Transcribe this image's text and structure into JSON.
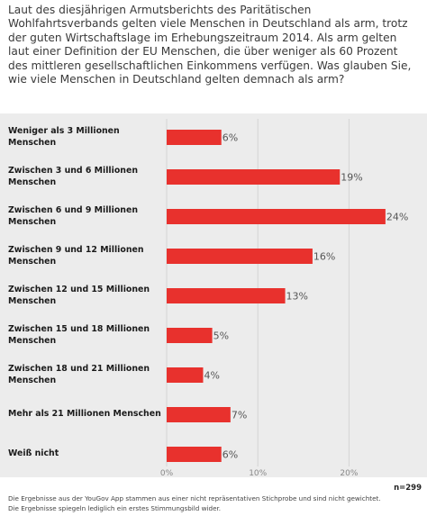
{
  "question": "Laut des diesjährigen Armutsberichts des Paritätischen Wohlfahrtsverbands gelten viele Menschen in Deutschland als arm, trotz der guten Wirtschaftslage im Erhebungszeitraum 2014. Als arm gelten laut einer Definition der EU Menschen, die über weniger als 60 Prozent des mittleren gesellschaftlichen Einkommens verfügen. Was glauben Sie, wie viele Menschen in Deutschland gelten demnach als arm?",
  "sample_size": "n=299",
  "footnotes": [
    "Die Ergebnisse aus der YouGov App stammen aus einer nicht repräsentativen Stichprobe und sind nicht gewichtet.",
    "Die Ergebnisse spiegeln lediglich ein erstes Stimmungsbild wider."
  ],
  "chart_data": {
    "type": "bar",
    "orientation": "horizontal",
    "categories": [
      "Weniger als 3 Millionen Menschen",
      "Zwischen 3 und 6 Millionen Menschen",
      "Zwischen 6 und 9 Millionen Menschen",
      "Zwischen 9 und 12 Millionen Menschen",
      "Zwischen 12 und 15 Millionen Menschen",
      "Zwischen 15 und 18 Millionen Menschen",
      "Zwischen 18 und 21 Millionen Menschen",
      "Mehr als 21 Millionen Menschen",
      "Weiß nicht"
    ],
    "values": [
      6,
      19,
      24,
      16,
      13,
      5,
      4,
      7,
      6
    ],
    "value_labels": [
      "6%",
      "19%",
      "24%",
      "16%",
      "13%",
      "5%",
      "4%",
      "7%",
      "6%"
    ],
    "xlim": [
      0,
      28
    ],
    "xticks": [
      0,
      10,
      20
    ],
    "xtick_labels": [
      "0%",
      "10%",
      "20%"
    ],
    "grid": true,
    "bar_color": "#e8312d",
    "background_color": "#ececec"
  }
}
